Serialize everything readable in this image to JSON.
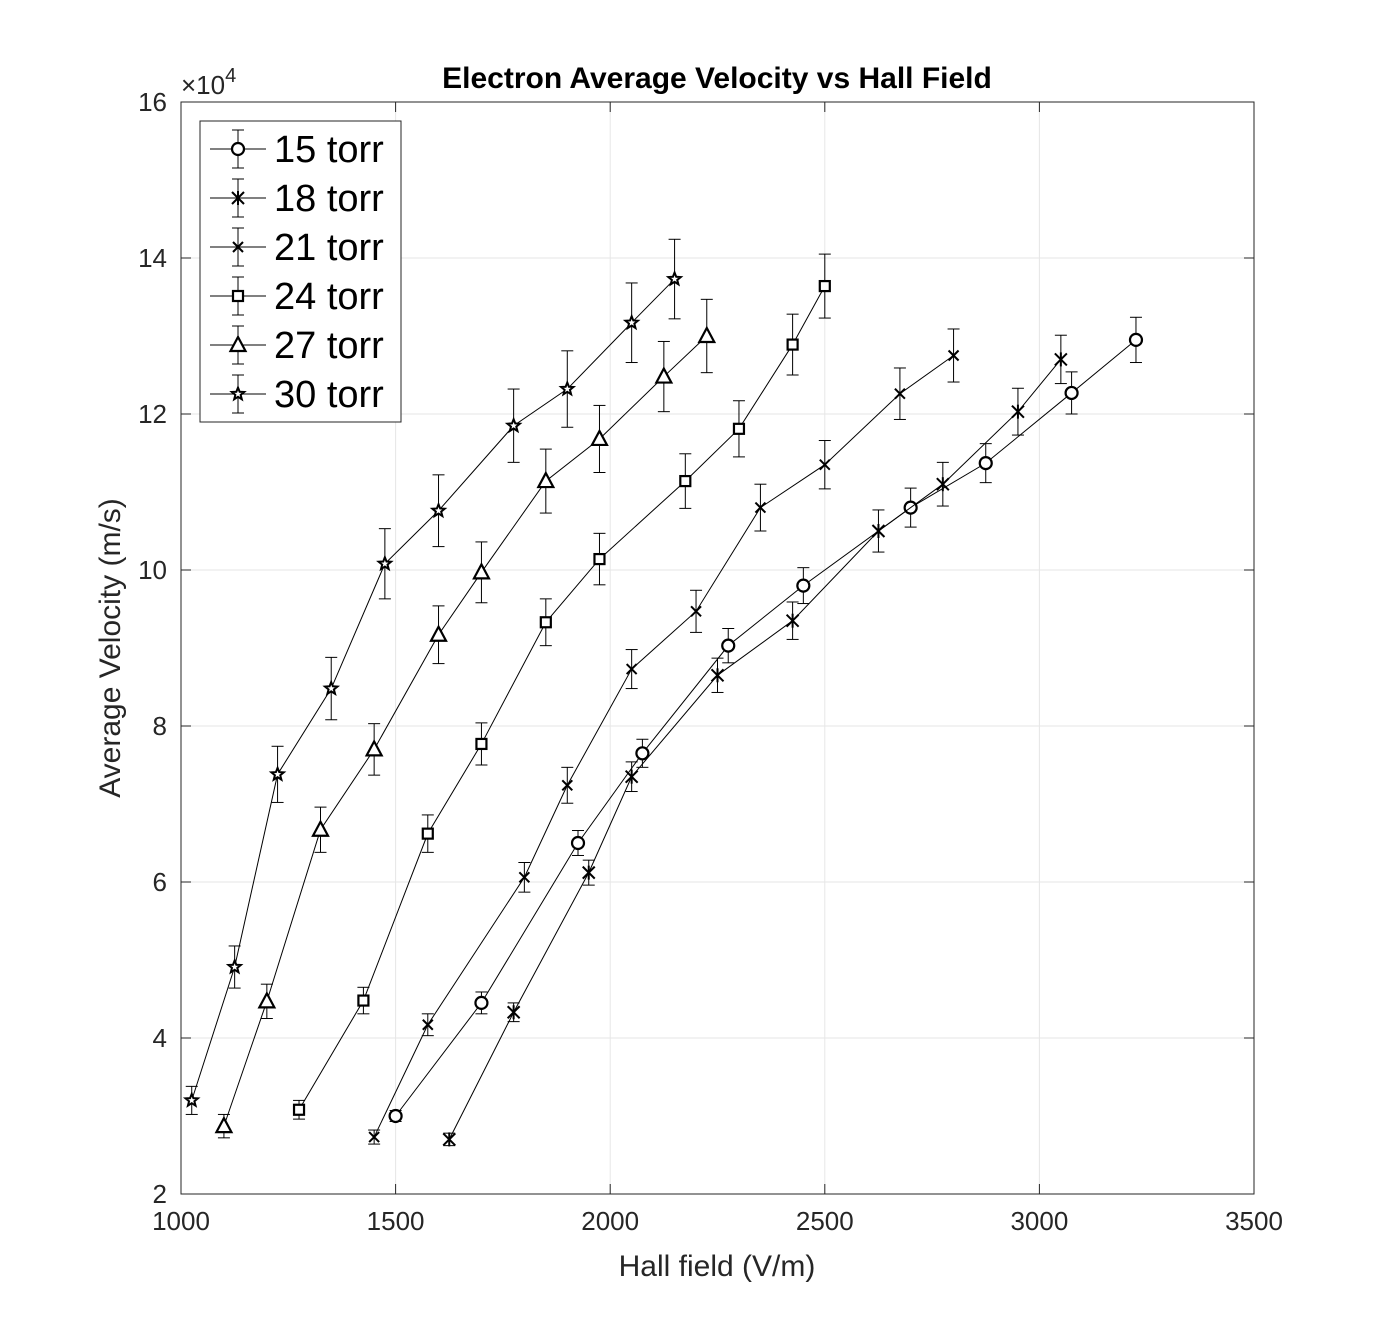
{
  "chart_data": {
    "type": "line",
    "title": "Electron Average Velocity vs Hall Field",
    "xlabel": "Hall field (V/m)",
    "ylabel": "Average Velocity (m/s)",
    "xlim": [
      1000,
      3500
    ],
    "ylim": [
      20000,
      160000
    ],
    "x_ticks": [
      "1000",
      "1500",
      "2000",
      "2500",
      "3000",
      "3500"
    ],
    "y_ticks": [
      "2",
      "4",
      "6",
      "8",
      "10",
      "12",
      "14",
      "16"
    ],
    "y_exponent_base": "×10",
    "y_exponent_power": "4",
    "grid": true,
    "legend_position": "top-left",
    "colors": {
      "line": "#000000",
      "grid": "#e6e6e6",
      "axis": "#262626"
    },
    "series": [
      {
        "name": "15 torr",
        "marker": "circle",
        "points": [
          [
            1500,
            30000,
            700
          ],
          [
            1700,
            44500,
            1400
          ],
          [
            1925,
            65000,
            1600
          ],
          [
            2075,
            76500,
            1800
          ],
          [
            2275,
            90300,
            2200
          ],
          [
            2450,
            98000,
            2300
          ],
          [
            2700,
            108000,
            2500
          ],
          [
            2875,
            113700,
            2500
          ],
          [
            3075,
            122700,
            2700
          ],
          [
            3225,
            129500,
            2900
          ]
        ]
      },
      {
        "name": "18 torr",
        "marker": "asterisk",
        "points": [
          [
            1625,
            27000,
            800
          ],
          [
            1775,
            43300,
            1200
          ],
          [
            1950,
            61200,
            1600
          ],
          [
            2050,
            73500,
            1900
          ],
          [
            2250,
            86500,
            2200
          ],
          [
            2425,
            93500,
            2400
          ],
          [
            2625,
            105000,
            2700
          ],
          [
            2775,
            111000,
            2800
          ],
          [
            2950,
            120300,
            3000
          ],
          [
            3050,
            127000,
            3100
          ]
        ]
      },
      {
        "name": "21 torr",
        "marker": "x",
        "points": [
          [
            1450,
            27300,
            900
          ],
          [
            1575,
            41700,
            1400
          ],
          [
            1800,
            60600,
            1900
          ],
          [
            1900,
            72400,
            2300
          ],
          [
            2050,
            87300,
            2500
          ],
          [
            2200,
            94700,
            2700
          ],
          [
            2350,
            108000,
            3000
          ],
          [
            2500,
            113500,
            3100
          ],
          [
            2675,
            122600,
            3300
          ],
          [
            2800,
            127500,
            3400
          ]
        ]
      },
      {
        "name": "24 torr",
        "marker": "square",
        "points": [
          [
            1275,
            30800,
            1200
          ],
          [
            1425,
            44800,
            1700
          ],
          [
            1575,
            66200,
            2400
          ],
          [
            1700,
            77700,
            2700
          ],
          [
            1850,
            93300,
            3000
          ],
          [
            1975,
            101400,
            3300
          ],
          [
            2175,
            111400,
            3500
          ],
          [
            2300,
            118100,
            3600
          ],
          [
            2425,
            128900,
            3900
          ],
          [
            2500,
            136400,
            4100
          ]
        ]
      },
      {
        "name": "27 torr",
        "marker": "triangle",
        "points": [
          [
            1100,
            28700,
            1500
          ],
          [
            1200,
            44700,
            2200
          ],
          [
            1325,
            66700,
            2900
          ],
          [
            1450,
            77000,
            3300
          ],
          [
            1600,
            91700,
            3700
          ],
          [
            1700,
            99700,
            3900
          ],
          [
            1850,
            111400,
            4100
          ],
          [
            1975,
            116800,
            4300
          ],
          [
            2125,
            124800,
            4500
          ],
          [
            2225,
            130000,
            4700
          ]
        ]
      },
      {
        "name": "30 torr",
        "marker": "star",
        "points": [
          [
            1025,
            32000,
            1800
          ],
          [
            1125,
            49100,
            2700
          ],
          [
            1225,
            73800,
            3600
          ],
          [
            1350,
            84800,
            4000
          ],
          [
            1475,
            100800,
            4500
          ],
          [
            1600,
            107600,
            4600
          ],
          [
            1775,
            118500,
            4700
          ],
          [
            1900,
            123200,
            4900
          ],
          [
            2050,
            131700,
            5100
          ],
          [
            2150,
            137300,
            5100
          ]
        ]
      }
    ]
  }
}
